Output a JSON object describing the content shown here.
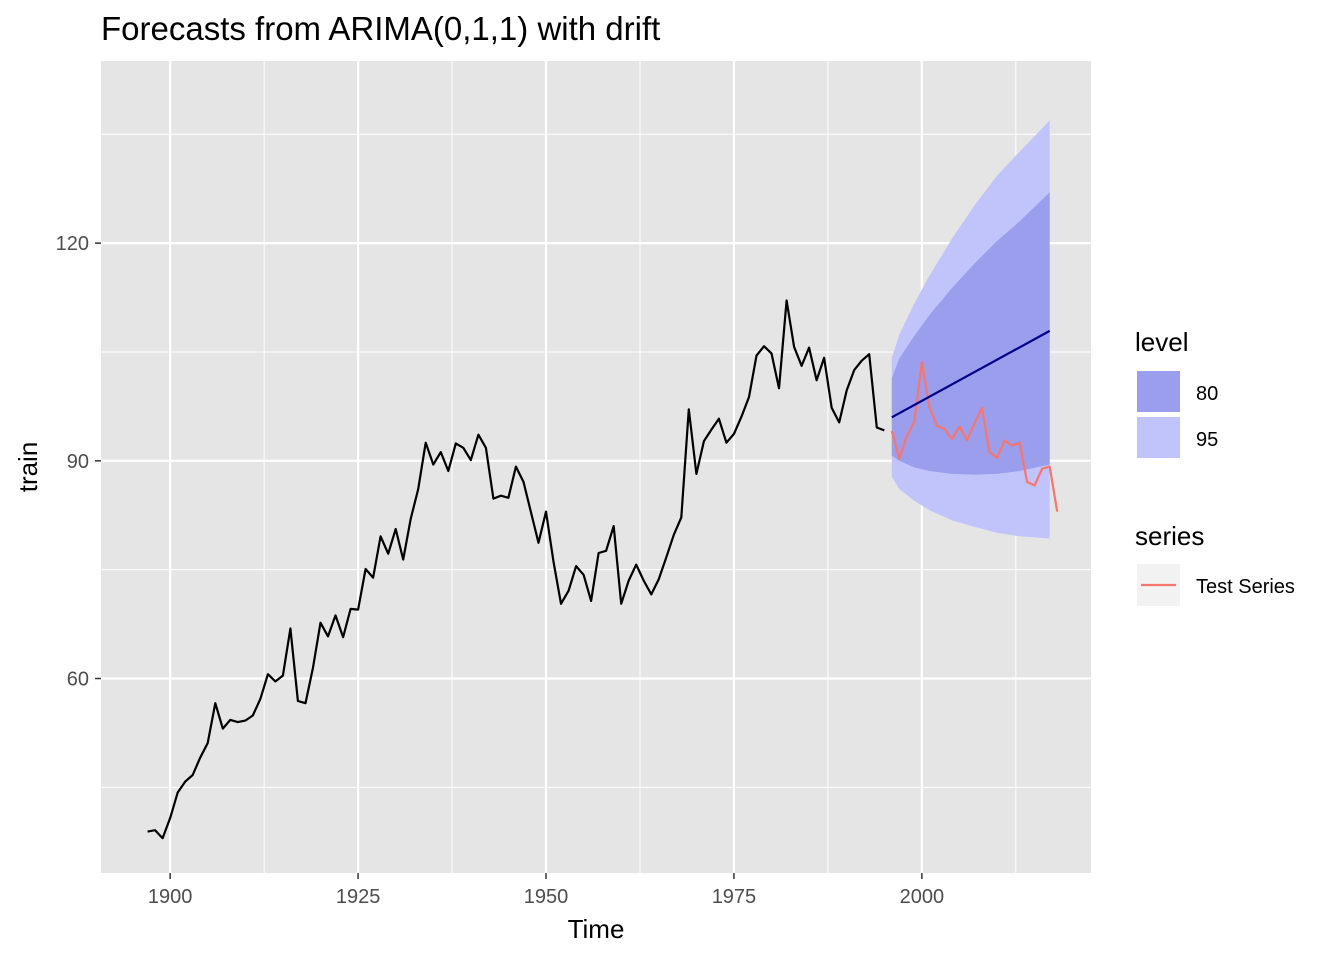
{
  "chart_data": {
    "type": "line",
    "title": "Forecasts from ARIMA(0,1,1) with drift",
    "xlabel": "Time",
    "ylabel": "train",
    "xlim": [
      1890.8,
      2022.5
    ],
    "ylim": [
      33.2,
      145.1
    ],
    "x_ticks": [
      1900,
      1925,
      1950,
      1975,
      2000
    ],
    "x_tick_labels": [
      "1900",
      "1925",
      "1950",
      "1975",
      "2000"
    ],
    "y_ticks": [
      60,
      90,
      120
    ],
    "y_tick_labels": [
      "60",
      "90",
      "120"
    ],
    "grid": true,
    "legend_position": "right",
    "series": [
      {
        "name": "train",
        "color": "#000000",
        "x_start": 1897,
        "values": [
          38.9,
          39.1,
          38.0,
          40.8,
          44.3,
          45.8,
          46.7,
          49.1,
          51.1,
          56.6,
          53.1,
          54.3,
          54.0,
          54.2,
          54.9,
          57.2,
          60.6,
          59.6,
          60.4,
          66.9,
          56.9,
          56.6,
          61.5,
          67.7,
          65.8,
          68.7,
          65.7,
          69.6,
          69.5,
          75.1,
          73.9,
          79.6,
          77.2,
          80.6,
          76.4,
          82.0,
          86.1,
          92.5,
          89.5,
          91.2,
          88.6,
          92.4,
          91.8,
          90.1,
          93.6,
          91.8,
          84.8,
          85.2,
          84.9,
          89.2,
          87.1,
          82.9,
          78.7,
          83.0,
          76.1,
          70.3,
          72.1,
          75.5,
          74.3,
          70.7,
          77.3,
          77.6,
          81.0,
          70.3,
          73.5,
          75.7,
          73.5,
          71.6,
          73.7,
          76.7,
          79.8,
          82.2,
          97.1,
          88.2,
          92.7,
          94.3,
          95.8,
          92.5,
          93.7,
          96.1,
          98.8,
          104.5,
          105.8,
          104.8,
          100.0,
          112.1,
          105.7,
          103.1,
          105.6,
          101.1,
          104.2,
          97.3,
          95.3,
          99.7,
          102.5,
          103.8,
          104.7,
          94.6,
          94.2
        ]
      },
      {
        "name": "Test Series",
        "color": "#F8766D",
        "x_start": 1996,
        "values": [
          94.1,
          90.3,
          93.4,
          95.4,
          103.6,
          97.4,
          94.8,
          94.4,
          93.0,
          94.7,
          92.8,
          95.2,
          97.3,
          91.2,
          90.4,
          92.8,
          92.1,
          92.5,
          87.1,
          86.6,
          88.9,
          89.2,
          83.0
        ]
      },
      {
        "name": "point forecast",
        "color": "#00008B",
        "x_start": 1996,
        "x_end": 2017,
        "values": [
          96.0,
          107.9
        ]
      }
    ],
    "intervals": [
      {
        "level": "95",
        "color": "#C1C3FB",
        "x": [
          1996,
          1997,
          1999,
          2001,
          2004,
          2007,
          2010,
          2013,
          2017
        ],
        "lower": [
          87.8,
          86.1,
          84.5,
          83.2,
          81.8,
          80.9,
          80.1,
          79.6,
          79.3
        ],
        "upper": [
          104.2,
          107.4,
          111.7,
          115.5,
          120.6,
          125.2,
          129.3,
          132.6,
          136.9
        ]
      },
      {
        "level": "80",
        "color": "#9A9EED",
        "x": [
          1996,
          1997,
          1999,
          2001,
          2004,
          2007,
          2010,
          2013,
          2017
        ],
        "lower": [
          90.7,
          90.0,
          89.1,
          88.6,
          88.2,
          88.1,
          88.2,
          88.6,
          89.5
        ],
        "upper": [
          101.4,
          104.1,
          107.2,
          110.1,
          113.8,
          117.2,
          120.3,
          123.0,
          127.0
        ]
      }
    ],
    "legend": {
      "level_title": "level",
      "level_items": [
        {
          "label": "80",
          "color": "#9A9EED"
        },
        {
          "label": "95",
          "color": "#C1C3FB"
        }
      ],
      "series_title": "series",
      "series_items": [
        {
          "label": "Test Series",
          "color": "#F8766D"
        }
      ]
    },
    "panel_background": "#E5E5E5",
    "grid_color": "#FFFFFF"
  }
}
